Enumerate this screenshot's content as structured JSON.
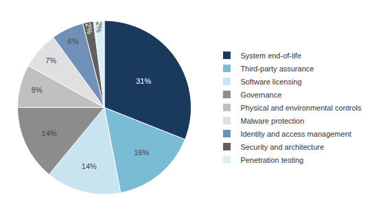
{
  "chart_data": {
    "type": "pie",
    "categories": [
      "System end-of-life",
      "Third-party assurance",
      "Software licensing",
      "Governance",
      "Physical and environmental controls",
      "Malware protection",
      "Identity and access management",
      "Security and architecture",
      "Penetration testing"
    ],
    "values": [
      31,
      16,
      14,
      14,
      8,
      7,
      6,
      2,
      2
    ],
    "value_labels": [
      "31%",
      "16%",
      "14%",
      "14%",
      "8%",
      "7%",
      "6%",
      "2%",
      "2%"
    ],
    "colors": [
      "#1a3a5c",
      "#7bbcd5",
      "#c8e4f0",
      "#8c8c8c",
      "#c0c0c0",
      "#e0e0e0",
      "#7090b8",
      "#606060",
      "#daeef8"
    ],
    "data_labels": true,
    "legend": "right"
  }
}
